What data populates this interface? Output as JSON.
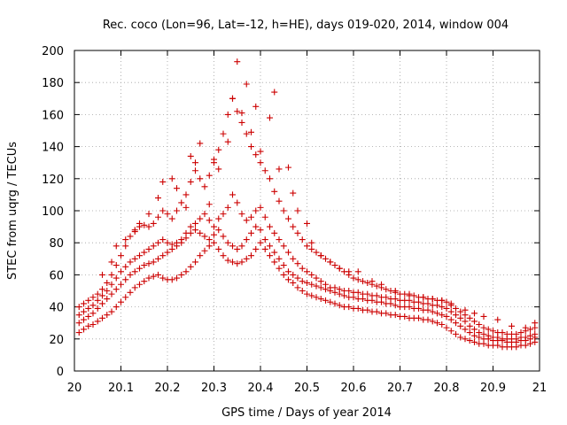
{
  "chart_data": {
    "type": "scatter",
    "title": "Rec. coco (Lon=96, Lat=-12, h=HE), days 019-020, 2014, window 004",
    "xlabel": "GPS time / Days of year 2014",
    "ylabel": "STEC from uqrg / TECUs",
    "xlim": [
      20,
      21
    ],
    "ylim": [
      0,
      200
    ],
    "x_ticks": [
      20,
      20.1,
      20.2,
      20.3,
      20.4,
      20.5,
      20.6,
      20.7,
      20.8,
      20.9,
      21
    ],
    "x_tick_labels": [
      "20",
      "20.1",
      "20.2",
      "20.3",
      "20.4",
      "20.5",
      "20.6",
      "20.7",
      "20.8",
      "20.9",
      "21"
    ],
    "y_ticks": [
      0,
      20,
      40,
      60,
      80,
      100,
      120,
      140,
      160,
      180,
      200
    ],
    "y_tick_labels": [
      "0",
      "20",
      "40",
      "60",
      "80",
      "100",
      "120",
      "140",
      "160",
      "180",
      "200"
    ],
    "grid": true,
    "marker": "plus",
    "color": "#cc0000",
    "series": [
      {
        "x": [
          20.01,
          20.02,
          20.03,
          20.04,
          20.05,
          20.06,
          20.07,
          20.08,
          20.09,
          20.1,
          20.11,
          20.12,
          20.13,
          20.14,
          20.15,
          20.16,
          20.17,
          20.18,
          20.19,
          20.2,
          20.21,
          20.22,
          20.23,
          20.24,
          20.25,
          20.26,
          20.27,
          20.28,
          20.29,
          20.3,
          20.31,
          20.32,
          20.33,
          20.34,
          20.35,
          20.36,
          20.37,
          20.38,
          20.39,
          20.4,
          20.41,
          20.42,
          20.43,
          20.44,
          20.45,
          20.46,
          20.47,
          20.48,
          20.49,
          20.5,
          20.51,
          20.52,
          20.53,
          20.54,
          20.55,
          20.56,
          20.57,
          20.58,
          20.59,
          20.6,
          20.61,
          20.62,
          20.63,
          20.64,
          20.65,
          20.66,
          20.67,
          20.68,
          20.69,
          20.7,
          20.71,
          20.72,
          20.73,
          20.74,
          20.75,
          20.76,
          20.77,
          20.78,
          20.79,
          20.8,
          20.81,
          20.82,
          20.83,
          20.84,
          20.85,
          20.86,
          20.87,
          20.88,
          20.89,
          20.9,
          20.91,
          20.92,
          20.93,
          20.94,
          20.95,
          20.96,
          20.97,
          20.98,
          20.99
        ],
        "y": [
          24,
          26,
          28,
          29,
          31,
          33,
          35,
          37,
          40,
          43,
          46,
          49,
          52,
          54,
          56,
          58,
          59,
          60,
          58,
          57,
          57,
          58,
          60,
          62,
          65,
          68,
          72,
          75,
          78,
          80,
          76,
          72,
          69,
          68,
          67,
          68,
          70,
          72,
          76,
          80,
          76,
          72,
          68,
          64,
          60,
          57,
          55,
          52,
          50,
          48,
          47,
          46,
          45,
          44,
          43,
          42,
          41,
          40,
          40,
          39,
          39,
          38,
          38,
          37,
          37,
          36,
          36,
          35,
          35,
          34,
          34,
          33,
          33,
          33,
          32,
          32,
          31,
          30,
          29,
          27,
          25,
          23,
          21,
          20,
          19,
          18,
          17,
          17,
          16,
          16,
          16,
          15,
          15,
          15,
          15,
          16,
          16,
          17,
          18
        ]
      },
      {
        "x": [
          20.01,
          20.02,
          20.03,
          20.04,
          20.05,
          20.06,
          20.07,
          20.08,
          20.09,
          20.1,
          20.11,
          20.12,
          20.13,
          20.14,
          20.15,
          20.16,
          20.17,
          20.18,
          20.19,
          20.2,
          20.21,
          20.22,
          20.23,
          20.24,
          20.25,
          20.26,
          20.27,
          20.28,
          20.29,
          20.3,
          20.31,
          20.32,
          20.33,
          20.34,
          20.35,
          20.36,
          20.37,
          20.38,
          20.39,
          20.4,
          20.41,
          20.42,
          20.43,
          20.44,
          20.45,
          20.46,
          20.47,
          20.48,
          20.49,
          20.5,
          20.51,
          20.52,
          20.53,
          20.54,
          20.55,
          20.56,
          20.57,
          20.58,
          20.59,
          20.6,
          20.61,
          20.62,
          20.63,
          20.64,
          20.65,
          20.66,
          20.67,
          20.68,
          20.69,
          20.7,
          20.71,
          20.72,
          20.73,
          20.74,
          20.75,
          20.76,
          20.77,
          20.78,
          20.79,
          20.8,
          20.81,
          20.82,
          20.83,
          20.84,
          20.85,
          20.86,
          20.87,
          20.88,
          20.89,
          20.9,
          20.91,
          20.92,
          20.93,
          20.94,
          20.95,
          20.96,
          20.97,
          20.98,
          20.99
        ],
        "y": [
          30,
          32,
          34,
          36,
          39,
          42,
          45,
          48,
          51,
          54,
          57,
          60,
          62,
          64,
          66,
          67,
          68,
          70,
          72,
          74,
          76,
          78,
          80,
          83,
          86,
          88,
          86,
          84,
          82,
          85,
          88,
          84,
          80,
          78,
          76,
          78,
          82,
          86,
          90,
          88,
          82,
          78,
          74,
          70,
          66,
          62,
          60,
          58,
          56,
          55,
          54,
          53,
          52,
          51,
          50,
          49,
          48,
          47,
          46,
          46,
          45,
          45,
          44,
          44,
          43,
          43,
          42,
          42,
          41,
          40,
          40,
          40,
          39,
          39,
          38,
          38,
          37,
          36,
          35,
          34,
          32,
          30,
          28,
          26,
          24,
          22,
          21,
          20,
          20,
          19,
          19,
          19,
          18,
          18,
          18,
          19,
          19,
          20,
          21
        ]
      },
      {
        "x": [
          20.01,
          20.02,
          20.03,
          20.04,
          20.05,
          20.06,
          20.07,
          20.08,
          20.09,
          20.1,
          20.11,
          20.12,
          20.13,
          20.14,
          20.15,
          20.16,
          20.17,
          20.18,
          20.19,
          20.2,
          20.21,
          20.22,
          20.23,
          20.24,
          20.25,
          20.26,
          20.27,
          20.28,
          20.29,
          20.3,
          20.31,
          20.32,
          20.33,
          20.34,
          20.35,
          20.36,
          20.37,
          20.38,
          20.39,
          20.4,
          20.41,
          20.42,
          20.43,
          20.44,
          20.45,
          20.46,
          20.47,
          20.48,
          20.49,
          20.5,
          20.51,
          20.52,
          20.53,
          20.54,
          20.55,
          20.56,
          20.57,
          20.58,
          20.59,
          20.6,
          20.61,
          20.62,
          20.63,
          20.64,
          20.65,
          20.66,
          20.67,
          20.68,
          20.69,
          20.7,
          20.71,
          20.72,
          20.73,
          20.74,
          20.75,
          20.76,
          20.77,
          20.78,
          20.79,
          20.8,
          20.81,
          20.82,
          20.83,
          20.84,
          20.85,
          20.86,
          20.87,
          20.88,
          20.89,
          20.9,
          20.91,
          20.92,
          20.93,
          20.94,
          20.95,
          20.96,
          20.97,
          20.98,
          20.99
        ],
        "y": [
          35,
          37,
          39,
          41,
          44,
          47,
          50,
          54,
          58,
          62,
          65,
          68,
          70,
          72,
          74,
          76,
          78,
          80,
          82,
          80,
          79,
          80,
          82,
          86,
          90,
          92,
          95,
          98,
          94,
          90,
          95,
          98,
          102,
          110,
          105,
          98,
          94,
          96,
          100,
          102,
          96,
          90,
          86,
          82,
          78,
          74,
          70,
          67,
          64,
          62,
          60,
          58,
          56,
          54,
          52,
          52,
          51,
          50,
          50,
          49,
          49,
          48,
          48,
          47,
          47,
          46,
          46,
          45,
          45,
          44,
          44,
          44,
          43,
          43,
          42,
          42,
          41,
          41,
          40,
          39,
          37,
          35,
          33,
          31,
          28,
          26,
          24,
          23,
          22,
          21,
          21,
          20,
          20,
          20,
          20,
          21,
          21,
          22,
          23
        ]
      },
      {
        "x": [
          20.01,
          20.02,
          20.03,
          20.04,
          20.05,
          20.06,
          20.07,
          20.08,
          20.09,
          20.1,
          20.11,
          20.12,
          20.13,
          20.14,
          20.15,
          20.16,
          20.17,
          20.18,
          20.19,
          20.2,
          20.21,
          20.22,
          20.23,
          20.24,
          20.25,
          20.26,
          20.27,
          20.28,
          20.29,
          20.3,
          20.31,
          20.32,
          20.33,
          20.34,
          20.35,
          20.36,
          20.37,
          20.38,
          20.39,
          20.4,
          20.41,
          20.42,
          20.43,
          20.44,
          20.45,
          20.46,
          20.47,
          20.48,
          20.49,
          20.5,
          20.51,
          20.52,
          20.53,
          20.54,
          20.55,
          20.56,
          20.57,
          20.58,
          20.59,
          20.6,
          20.61,
          20.62,
          20.63,
          20.64,
          20.65,
          20.66,
          20.67,
          20.68,
          20.69,
          20.7,
          20.71,
          20.72,
          20.73,
          20.74,
          20.75,
          20.76,
          20.77,
          20.78,
          20.79,
          20.8,
          20.81,
          20.82,
          20.83,
          20.84,
          20.85,
          20.86,
          20.87,
          20.88,
          20.89,
          20.9,
          20.91,
          20.92,
          20.93,
          20.94,
          20.95,
          20.96,
          20.97,
          20.98,
          20.99
        ],
        "y": [
          40,
          42,
          44,
          46,
          48,
          51,
          55,
          60,
          66,
          72,
          78,
          84,
          88,
          90,
          91,
          90,
          92,
          96,
          100,
          98,
          95,
          100,
          105,
          110,
          118,
          125,
          120,
          115,
          122,
          130,
          138,
          148,
          160,
          170,
          162,
          155,
          148,
          140,
          135,
          130,
          125,
          120,
          112,
          106,
          100,
          95,
          90,
          86,
          82,
          78,
          76,
          74,
          72,
          70,
          68,
          66,
          64,
          62,
          60,
          58,
          57,
          56,
          55,
          54,
          53,
          52,
          51,
          50,
          49,
          48,
          48,
          47,
          47,
          46,
          46,
          45,
          45,
          44,
          44,
          43,
          41,
          39,
          37,
          35,
          33,
          31,
          29,
          27,
          26,
          25,
          24,
          24,
          23,
          23,
          23,
          24,
          25,
          26,
          27
        ]
      },
      {
        "x": [
          20.06,
          20.08,
          20.09,
          20.11,
          20.13,
          20.14,
          20.16,
          20.18,
          20.19,
          20.21,
          20.22,
          20.24,
          20.25,
          20.26,
          20.27,
          20.29,
          20.3,
          20.31,
          20.33,
          20.34,
          20.35,
          20.36,
          20.37,
          20.38,
          20.39,
          20.4,
          20.42,
          20.43,
          20.44,
          20.46,
          20.47,
          20.48,
          20.5,
          20.51,
          20.53,
          20.55,
          20.57,
          20.59,
          20.61,
          20.64,
          20.66,
          20.69,
          20.72,
          20.75,
          20.77,
          20.79,
          20.81,
          20.84,
          20.86,
          20.88,
          20.91,
          20.94,
          20.97,
          20.99
        ],
        "y": [
          60,
          68,
          78,
          82,
          87,
          92,
          98,
          108,
          118,
          120,
          114,
          102,
          134,
          130,
          142,
          104,
          132,
          126,
          143,
          170,
          193,
          161,
          179,
          149,
          165,
          137,
          158,
          174,
          126,
          127,
          111,
          100,
          92,
          80,
          72,
          68,
          64,
          62,
          62,
          56,
          54,
          50,
          48,
          46,
          45,
          44,
          42,
          38,
          36,
          34,
          32,
          28,
          27,
          30
        ]
      }
    ]
  }
}
